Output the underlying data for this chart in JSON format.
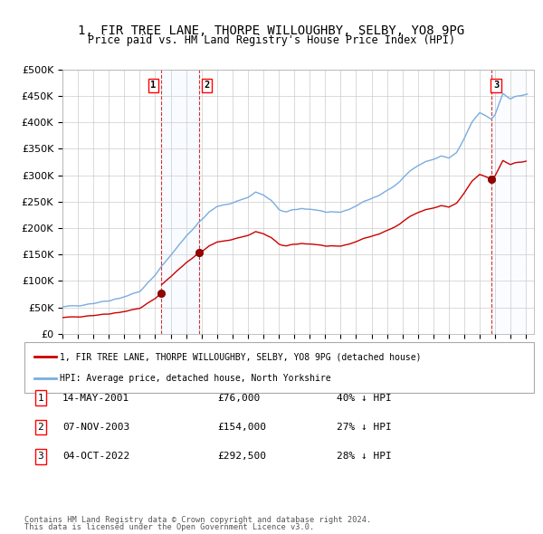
{
  "title": "1, FIR TREE LANE, THORPE WILLOUGHBY, SELBY, YO8 9PG",
  "subtitle": "Price paid vs. HM Land Registry's House Price Index (HPI)",
  "legend_line1": "1, FIR TREE LANE, THORPE WILLOUGHBY, SELBY, YO8 9PG (detached house)",
  "legend_line2": "HPI: Average price, detached house, North Yorkshire",
  "footer1": "Contains HM Land Registry data © Crown copyright and database right 2024.",
  "footer2": "This data is licensed under the Open Government Licence v3.0.",
  "transactions": [
    {
      "label": "1",
      "date": "14-MAY-2001",
      "price": "£76,000",
      "note": "40% ↓ HPI",
      "year": 2001.37,
      "value": 76000
    },
    {
      "label": "2",
      "date": "07-NOV-2003",
      "price": "£154,000",
      "note": "27% ↓ HPI",
      "year": 2003.85,
      "value": 154000
    },
    {
      "label": "3",
      "date": "04-OCT-2022",
      "price": "£292,500",
      "note": "28% ↓ HPI",
      "year": 2022.75,
      "value": 292500
    }
  ],
  "hpi_color": "#7aace0",
  "price_color": "#cc0000",
  "shade_color": "#ddeeff",
  "ylim": [
    0,
    500000
  ],
  "yticks": [
    0,
    50000,
    100000,
    150000,
    200000,
    250000,
    300000,
    350000,
    400000,
    450000,
    500000
  ],
  "xmin": 1995,
  "xmax": 2025.5
}
